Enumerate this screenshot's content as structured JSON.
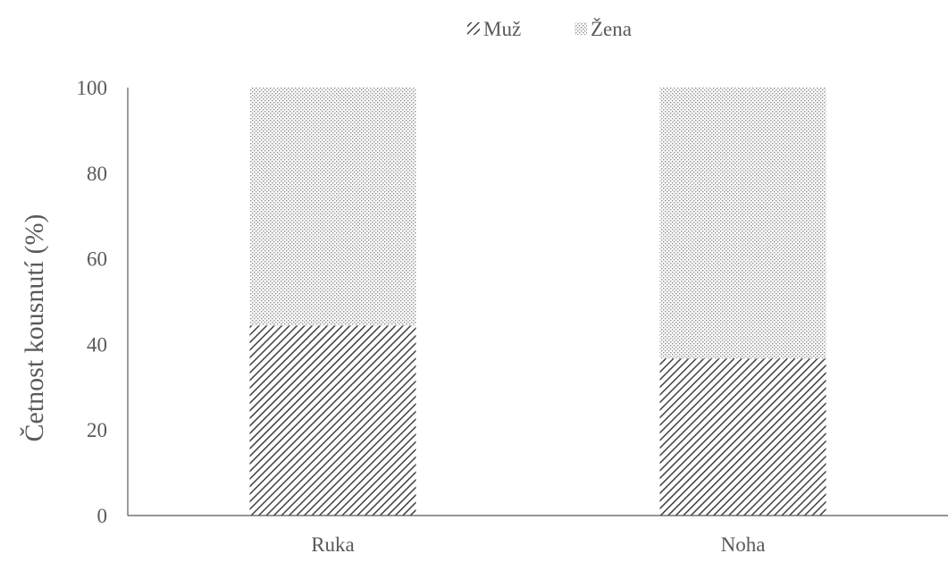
{
  "chart_data": {
    "type": "bar",
    "stacked": true,
    "categories": [
      "Ruka",
      "Noha"
    ],
    "series": [
      {
        "name": "Muž",
        "values": [
          44.4,
          36.7
        ],
        "pattern": "diagonal-hatch",
        "color": "#404040"
      },
      {
        "name": "Žena",
        "values": [
          55.6,
          63.3
        ],
        "pattern": "dots",
        "color": "#a6a6a6"
      }
    ],
    "title": "",
    "xlabel": "",
    "ylabel": "Četnost kousnutí (%)",
    "ylim": [
      0,
      100
    ],
    "yticks": [
      "0",
      "20",
      "40",
      "60",
      "80",
      "100"
    ],
    "grid": false,
    "legend_position": "top-center"
  }
}
